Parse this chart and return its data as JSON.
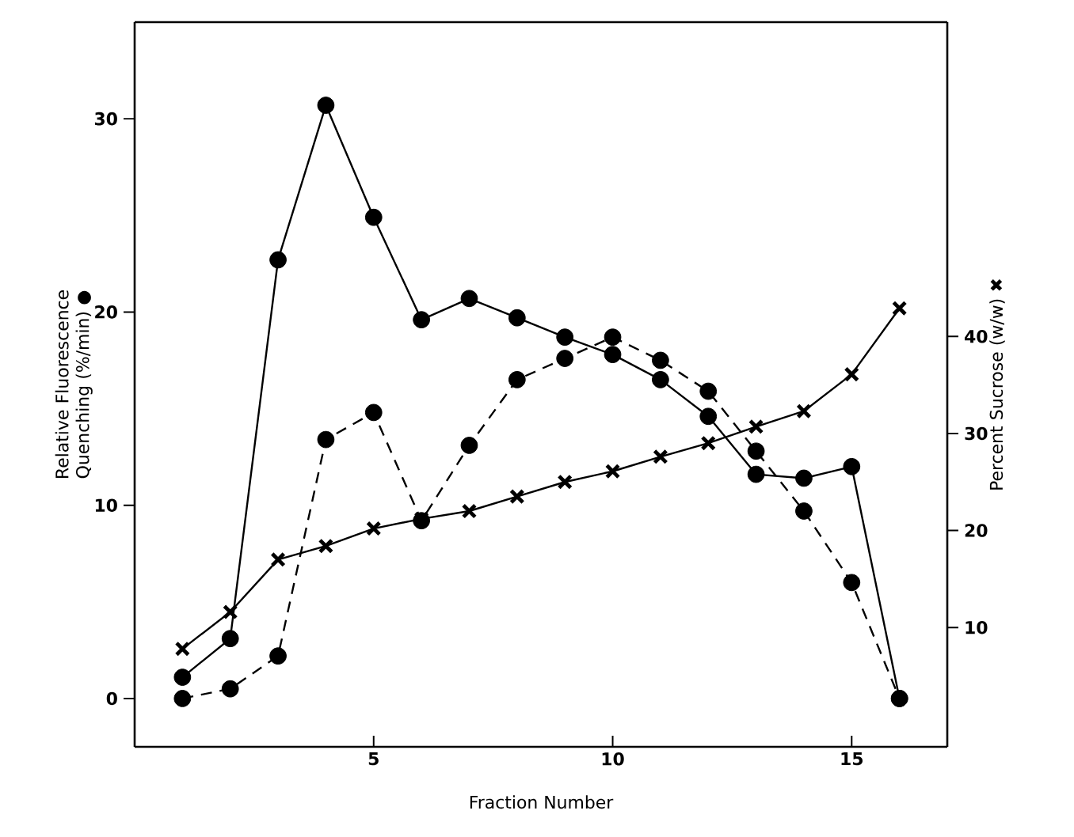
{
  "chart_data": {
    "type": "line",
    "xlabel": "Fraction Number",
    "ylabel": "Relative Fluorescence Quenching (%/min) ●",
    "y2label": "Percent Sucrose (w/w) ✖",
    "x": [
      1,
      2,
      3,
      4,
      5,
      6,
      7,
      8,
      9,
      10,
      11,
      12,
      13,
      14,
      15,
      16
    ],
    "series": [
      {
        "color": "#000000",
        "line_style": "solid",
        "marker": "circle",
        "values": [
          1.1,
          3.1,
          22.7,
          30.7,
          24.9,
          19.6,
          20.7,
          19.7,
          18.7,
          17.8,
          16.5,
          14.6,
          11.6,
          11.4,
          12.0,
          0
        ]
      },
      {
        "color": "#000000",
        "line_style": "dashed",
        "marker": "circle",
        "values": [
          0,
          0.5,
          2.2,
          13.4,
          14.8,
          9.2,
          13.1,
          16.5,
          17.6,
          18.7,
          17.5,
          15.9,
          12.8,
          9.7,
          6.0,
          0
        ]
      },
      {
        "color": "#000000",
        "line_style": "solid",
        "marker": "cross",
        "axis": "y2",
        "values": [
          7.8,
          11.6,
          17.0,
          18.4,
          20.2,
          21.2,
          22.0,
          23.5,
          25.0,
          26.1,
          27.6,
          29.0,
          30.7,
          32.3,
          36.1,
          42.9
        ]
      }
    ],
    "xlim": [
      0,
      17
    ],
    "ylim": [
      -2.5,
      35
    ],
    "y2lim": [
      -2.3,
      72.4
    ],
    "xticks": [
      5,
      10,
      15
    ],
    "yticks": [
      0,
      10,
      20,
      30
    ],
    "y2ticks": [
      10,
      20,
      30,
      40
    ]
  }
}
